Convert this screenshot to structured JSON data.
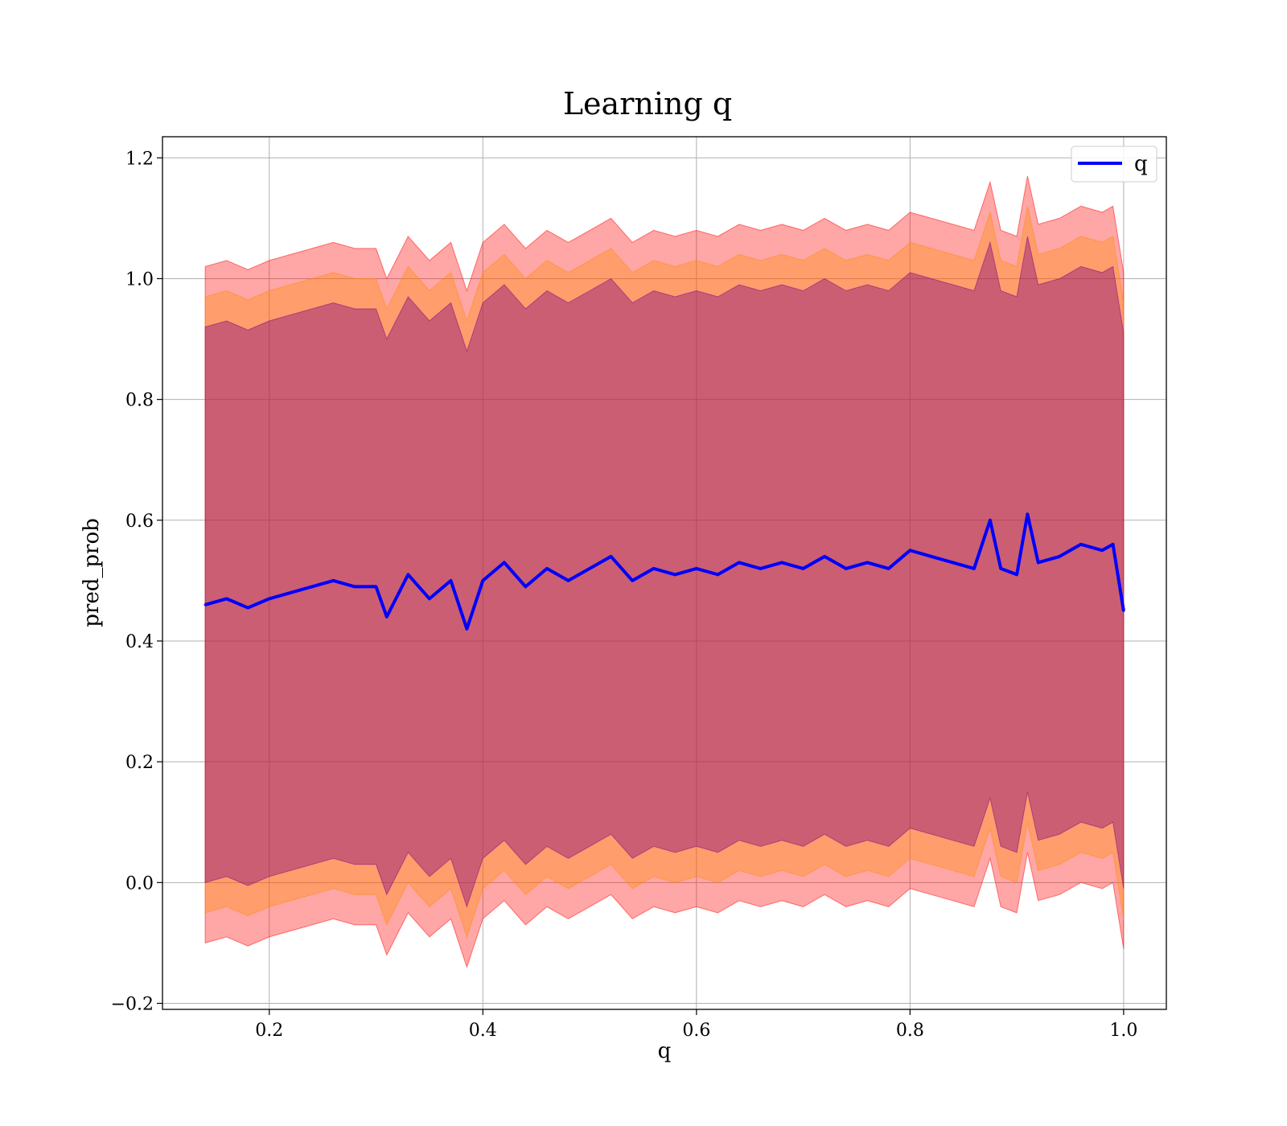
{
  "chart_data": {
    "type": "line",
    "title": "Learning q",
    "xlabel": "q",
    "ylabel": "pred_prob",
    "xlim": [
      0.1,
      1.04
    ],
    "ylim": [
      -0.21,
      1.235
    ],
    "xticks": [
      0.2,
      0.4,
      0.6,
      0.8,
      1.0
    ],
    "xtick_labels": [
      "0.2",
      "0.4",
      "0.6",
      "0.8",
      "1.0"
    ],
    "yticks": [
      -0.2,
      0.0,
      0.2,
      0.4,
      0.6,
      0.8,
      1.0,
      1.2
    ],
    "ytick_labels": [
      "−0.2",
      "0.0",
      "0.2",
      "0.4",
      "0.6",
      "0.8",
      "1.0",
      "1.2"
    ],
    "grid": true,
    "legend": {
      "position": "top-right",
      "entries": [
        "q"
      ]
    },
    "colors": {
      "line": "#0000ff",
      "band_outer": "#ff0000",
      "band_middle": "#ff8c00",
      "band_inner": "#800080"
    },
    "series": [
      {
        "name": "q",
        "x": [
          0.14,
          0.16,
          0.18,
          0.2,
          0.22,
          0.24,
          0.26,
          0.28,
          0.3,
          0.31,
          0.33,
          0.35,
          0.37,
          0.385,
          0.4,
          0.42,
          0.44,
          0.46,
          0.48,
          0.5,
          0.52,
          0.54,
          0.56,
          0.58,
          0.6,
          0.62,
          0.64,
          0.66,
          0.68,
          0.7,
          0.72,
          0.74,
          0.76,
          0.78,
          0.8,
          0.82,
          0.84,
          0.86,
          0.875,
          0.885,
          0.9,
          0.91,
          0.92,
          0.94,
          0.96,
          0.98,
          0.99,
          1.0
        ],
        "y": [
          0.46,
          0.47,
          0.455,
          0.47,
          0.48,
          0.49,
          0.5,
          0.49,
          0.49,
          0.44,
          0.51,
          0.47,
          0.5,
          0.42,
          0.5,
          0.53,
          0.49,
          0.52,
          0.5,
          0.52,
          0.54,
          0.5,
          0.52,
          0.51,
          0.52,
          0.51,
          0.53,
          0.52,
          0.53,
          0.52,
          0.54,
          0.52,
          0.53,
          0.52,
          0.55,
          0.54,
          0.53,
          0.52,
          0.6,
          0.52,
          0.51,
          0.61,
          0.53,
          0.54,
          0.56,
          0.55,
          0.56,
          0.45
        ]
      }
    ],
    "bands": [
      {
        "name": "outer",
        "lower_offset": -0.56,
        "upper_offset": 0.56
      },
      {
        "name": "middle",
        "lower_offset": -0.51,
        "upper_offset": 0.51
      },
      {
        "name": "inner",
        "lower_offset": -0.46,
        "upper_offset": 0.46
      }
    ]
  }
}
